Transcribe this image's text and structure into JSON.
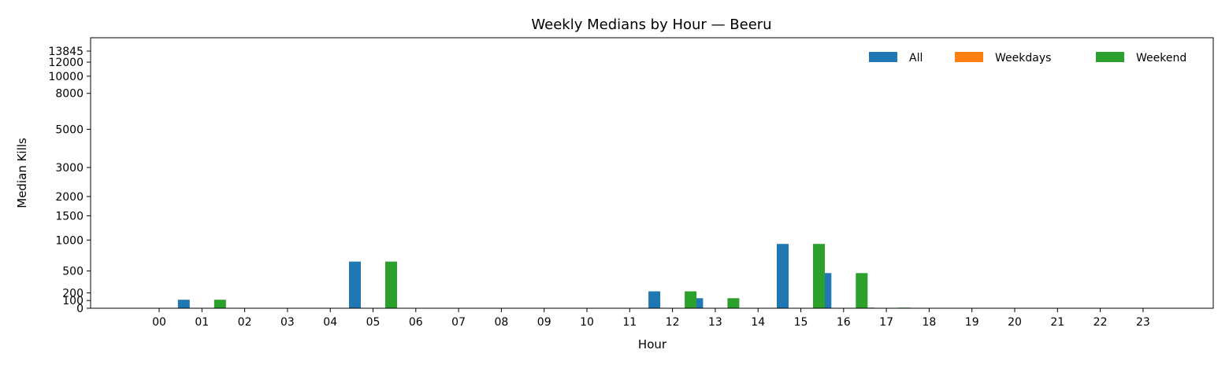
{
  "chart_data": {
    "type": "bar",
    "title": "Weekly Medians by Hour — Beeru",
    "xlabel": "Hour",
    "ylabel": "Median Kills",
    "categories": [
      "00",
      "01",
      "02",
      "03",
      "04",
      "05",
      "06",
      "07",
      "08",
      "09",
      "10",
      "11",
      "12",
      "13",
      "14",
      "15",
      "16",
      "17",
      "18",
      "19",
      "20",
      "21",
      "22",
      "23"
    ],
    "yticks": [
      0,
      100,
      200,
      500,
      1000,
      1500,
      2000,
      3000,
      5000,
      8000,
      10000,
      12000,
      13845
    ],
    "ylim": [
      0,
      13845
    ],
    "y_scale": "symlog",
    "series": [
      {
        "name": "All",
        "color": "#1f77b4",
        "values": [
          0,
          110,
          0,
          0,
          0,
          640,
          0,
          0,
          0,
          0,
          0,
          0,
          220,
          130,
          0,
          930,
          470,
          8,
          0,
          0,
          0,
          0,
          0,
          0
        ]
      },
      {
        "name": "Weekdays",
        "color": "#ff7f0e",
        "values": [
          0,
          0,
          0,
          0,
          0,
          0,
          0,
          0,
          0,
          0,
          0,
          0,
          0,
          0,
          0,
          0,
          0,
          0,
          0,
          0,
          0,
          0,
          0,
          0
        ]
      },
      {
        "name": "Weekend",
        "color": "#2ca02c",
        "values": [
          0,
          110,
          0,
          0,
          0,
          640,
          0,
          0,
          0,
          0,
          0,
          0,
          220,
          130,
          0,
          930,
          470,
          8,
          0,
          0,
          0,
          0,
          0,
          0
        ]
      }
    ],
    "legend": "top-right",
    "grid": false
  }
}
